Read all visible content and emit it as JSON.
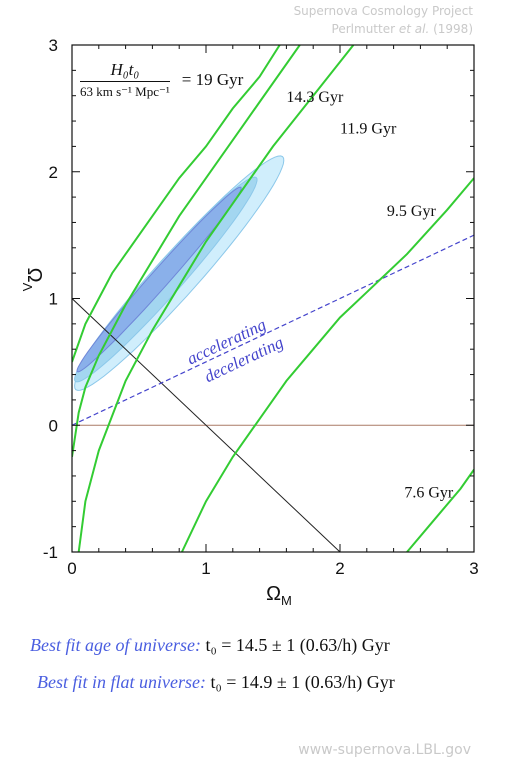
{
  "header": {
    "line1": "Supernova Cosmology Project",
    "line2_authors": "Perlmutter",
    "line2_etal": "et al.",
    "line2_year": "(1998)"
  },
  "chart_data": {
    "type": "contour",
    "xlabel": "Ω_M",
    "ylabel": "Ω_Λ",
    "xlim": [
      0,
      3
    ],
    "ylim": [
      -1,
      3
    ],
    "xticks": [
      "0",
      "1",
      "2",
      "3"
    ],
    "yticks": [
      "-1",
      "0",
      "1",
      "2",
      "3"
    ],
    "legend": {
      "numerator": "H₀t₀",
      "denominator": "63 km s⁻¹ Mpc⁻¹",
      "suffix": "= 19 Gyr"
    },
    "age_curves": [
      {
        "label": "19 Gyr",
        "color": "#33cc33",
        "points": [
          [
            0,
            0.5
          ],
          [
            0.1,
            0.8
          ],
          [
            0.2,
            1.0
          ],
          [
            0.3,
            1.2
          ],
          [
            0.4,
            1.35
          ],
          [
            0.6,
            1.65
          ],
          [
            0.8,
            1.95
          ],
          [
            1.0,
            2.2
          ],
          [
            1.2,
            2.5
          ],
          [
            1.4,
            2.75
          ],
          [
            1.55,
            3.0
          ]
        ]
      },
      {
        "label": "14.3 Gyr",
        "color": "#33cc33",
        "points": [
          [
            0,
            -0.25
          ],
          [
            0.05,
            0.1
          ],
          [
            0.1,
            0.3
          ],
          [
            0.2,
            0.55
          ],
          [
            0.4,
            0.95
          ],
          [
            0.6,
            1.3
          ],
          [
            0.8,
            1.65
          ],
          [
            1.0,
            1.95
          ],
          [
            1.2,
            2.25
          ],
          [
            1.4,
            2.55
          ],
          [
            1.7,
            3.0
          ]
        ]
      },
      {
        "label": "11.9 Gyr",
        "color": "#33cc33",
        "points": [
          [
            0.05,
            -1.0
          ],
          [
            0.1,
            -0.6
          ],
          [
            0.2,
            -0.2
          ],
          [
            0.4,
            0.35
          ],
          [
            0.6,
            0.75
          ],
          [
            0.8,
            1.1
          ],
          [
            1.0,
            1.45
          ],
          [
            1.2,
            1.75
          ],
          [
            1.5,
            2.2
          ],
          [
            1.8,
            2.6
          ],
          [
            2.1,
            3.0
          ]
        ]
      },
      {
        "label": "9.5 Gyr",
        "color": "#33cc33",
        "points": [
          [
            0.82,
            -1.0
          ],
          [
            1.0,
            -0.6
          ],
          [
            1.2,
            -0.25
          ],
          [
            1.4,
            0.05
          ],
          [
            1.6,
            0.35
          ],
          [
            1.8,
            0.6
          ],
          [
            2.0,
            0.85
          ],
          [
            2.2,
            1.05
          ],
          [
            2.5,
            1.35
          ],
          [
            2.8,
            1.7
          ],
          [
            3.0,
            1.95
          ]
        ]
      },
      {
        "label": "7.6 Gyr",
        "color": "#33cc33",
        "points": [
          [
            2.5,
            -1.0
          ],
          [
            2.7,
            -0.75
          ],
          [
            2.9,
            -0.5
          ],
          [
            3.0,
            -0.35
          ]
        ]
      }
    ],
    "boundary_line": {
      "label_above": "accelerating",
      "label_below": "decelerating",
      "color": "#4444cc",
      "points": [
        [
          0,
          0
        ],
        [
          3,
          1.5
        ]
      ]
    },
    "flat_universe_line": {
      "color": "#222222",
      "points": [
        [
          0,
          1
        ],
        [
          2,
          -1
        ]
      ]
    },
    "zero_lambda_line": {
      "color": "#aa7a66",
      "points": [
        [
          0,
          0
        ],
        [
          3,
          0
        ]
      ]
    },
    "confidence_regions": [
      {
        "name": "outer",
        "fill": "#d0eefc",
        "center": [
          0.8,
          1.2
        ],
        "semi_major": 1.2,
        "semi_minor": 0.16,
        "angle_deg": 50
      },
      {
        "name": "middle",
        "fill": "#a3d6f0",
        "center": [
          0.7,
          1.15
        ],
        "semi_major": 1.05,
        "semi_minor": 0.12,
        "angle_deg": 50
      },
      {
        "name": "inner",
        "fill": "#8ab0ea",
        "center": [
          0.65,
          1.15
        ],
        "semi_major": 0.95,
        "semi_minor": 0.07,
        "angle_deg": 50
      }
    ]
  },
  "captions": {
    "line1_label": "Best fit age of universe:",
    "line1_eq": "t₀ = 14.5 ± 1  (0.63/h)  Gyr",
    "line2_label": "Best fit in flat universe:",
    "line2_eq": "t₀ = 14.9 ± 1  (0.63/h)  Gyr"
  },
  "footer": {
    "url": "www-supernova.LBL.gov"
  }
}
